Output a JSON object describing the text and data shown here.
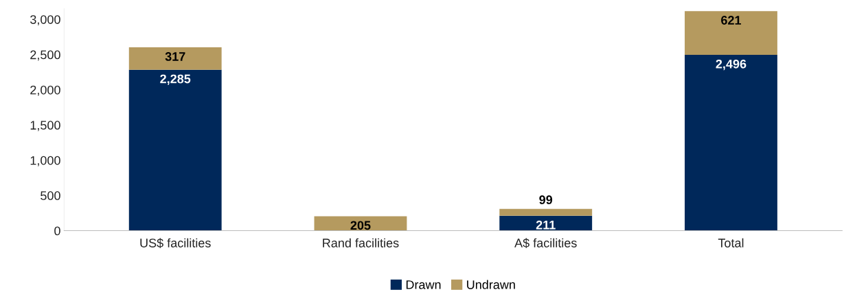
{
  "chart_data": {
    "type": "bar",
    "stacked": true,
    "categories": [
      "US$ facilities",
      "Rand facilities",
      "A$ facilities",
      "Total"
    ],
    "series": [
      {
        "name": "Drawn",
        "color": "#00285a",
        "values": [
          2285,
          0,
          211,
          2496
        ],
        "value_labels": [
          "2,285",
          null,
          "211",
          "2,496"
        ]
      },
      {
        "name": "Undrawn",
        "color": "#b59a5f",
        "values": [
          317,
          205,
          99,
          621
        ],
        "value_labels": [
          "317",
          "205",
          "99",
          "621"
        ]
      }
    ],
    "ylim": [
      0,
      3150
    ],
    "yticks": [
      {
        "value": 0,
        "label": "0"
      },
      {
        "value": 500,
        "label": "500"
      },
      {
        "value": 1000,
        "label": "1,000"
      },
      {
        "value": 1500,
        "label": "1,500"
      },
      {
        "value": 2000,
        "label": "2,000"
      },
      {
        "value": 2500,
        "label": "2,500"
      },
      {
        "value": 3000,
        "label": "3,000"
      }
    ],
    "grid": false,
    "legend": "bottom"
  }
}
